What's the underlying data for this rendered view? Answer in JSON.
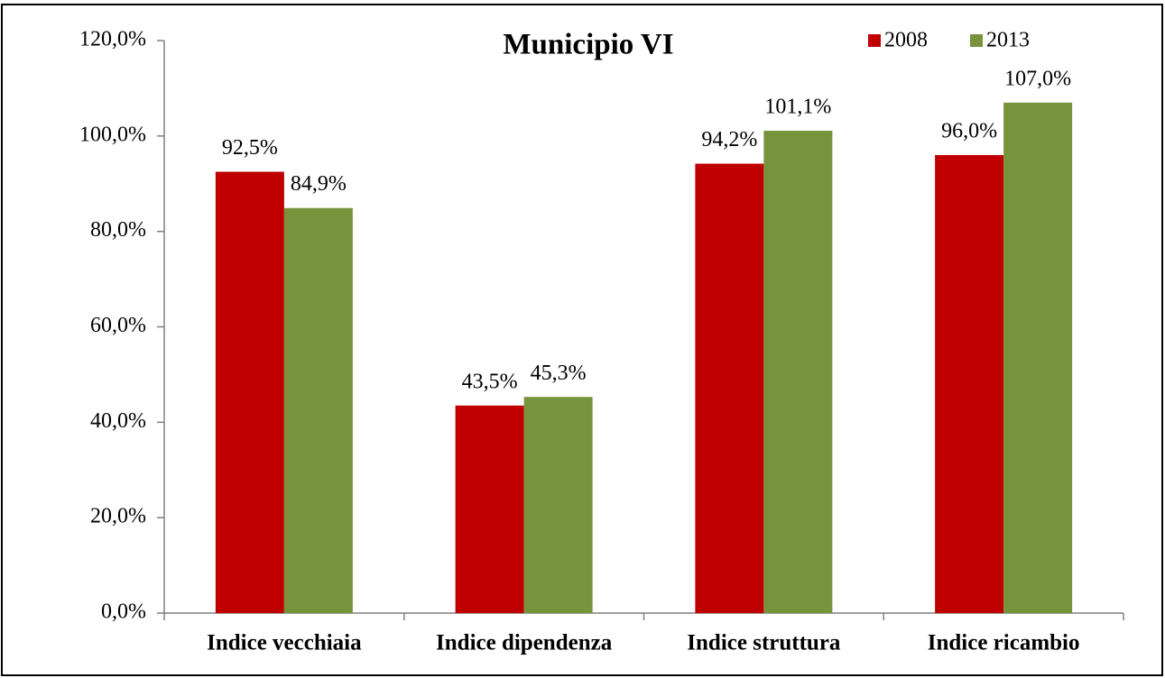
{
  "chart_data": {
    "type": "bar",
    "title": "Municipio VI",
    "categories": [
      "Indice vecchiaia",
      "Indice dipendenza",
      "Indice struttura",
      "Indice ricambio"
    ],
    "series": [
      {
        "name": "2008",
        "color": "#c00000",
        "values": [
          92.5,
          43.5,
          94.2,
          96.0
        ],
        "value_labels": [
          "92,5%",
          "43,5%",
          "94,2%",
          "96,0%"
        ]
      },
      {
        "name": "2013",
        "color": "#77933c",
        "values": [
          84.9,
          45.3,
          101.1,
          107.0
        ],
        "value_labels": [
          "84,9%",
          "45,3%",
          "101,1%",
          "107,0%"
        ]
      }
    ],
    "ylim": [
      0,
      120
    ],
    "yticks": [
      {
        "value": 0,
        "label": "0,0%"
      },
      {
        "value": 20,
        "label": "20,0%"
      },
      {
        "value": 40,
        "label": "40,0%"
      },
      {
        "value": 60,
        "label": "60,0%"
      },
      {
        "value": 80,
        "label": "80,0%"
      },
      {
        "value": 100,
        "label": "100,0%"
      },
      {
        "value": 120,
        "label": "120,0%"
      }
    ],
    "legend": "top-right"
  }
}
